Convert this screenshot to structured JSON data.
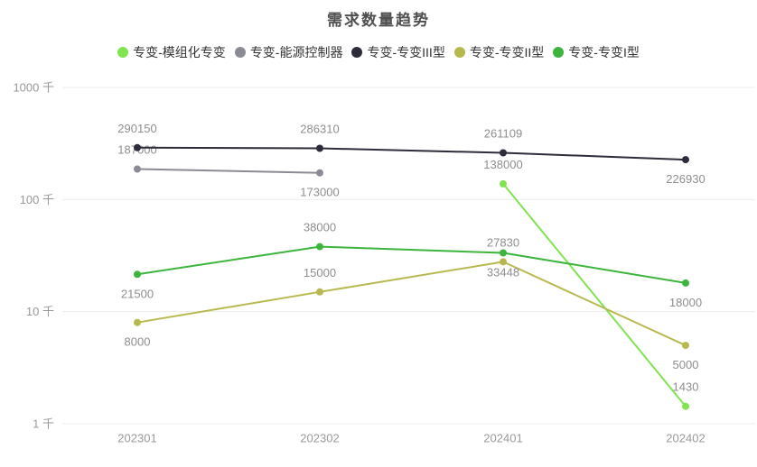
{
  "chart_data": {
    "type": "line",
    "title": "需求数量趋势",
    "categories": [
      "202301",
      "202302",
      "202401",
      "202402"
    ],
    "y_axis": {
      "scale": "log",
      "unit": "千",
      "range": [
        1000,
        1000000
      ],
      "ticks": [
        {
          "label": "1000 千",
          "value": 1000000
        },
        {
          "label": "100 千",
          "value": 100000
        },
        {
          "label": "10 千",
          "value": 10000
        },
        {
          "label": "1 千",
          "value": 1000
        }
      ]
    },
    "legend": {
      "position": "top",
      "items": [
        "专变-模组化专变",
        "专变-能源控制器",
        "专变-专变III型",
        "专变-专变II型",
        "专变-专变I型"
      ]
    },
    "grid": {
      "horizontal_lines": true,
      "vertical_lines": false
    },
    "series": [
      {
        "name": "专变-模组化专变",
        "color": "#80e34f",
        "points": [
          {
            "x": "202401",
            "value": 138000,
            "label": "138000",
            "label_pos": "above"
          },
          {
            "x": "202402",
            "value": 1430,
            "label": "1430",
            "label_pos": "above"
          }
        ]
      },
      {
        "name": "专变-能源控制器",
        "color": "#8b8b95",
        "points": [
          {
            "x": "202301",
            "value": 187000,
            "label": "187000",
            "label_pos": "above"
          },
          {
            "x": "202302",
            "value": 173000,
            "label": "173000",
            "label_pos": "below"
          }
        ]
      },
      {
        "name": "专变-专变III型",
        "color": "#2c2c3a",
        "points": [
          {
            "x": "202301",
            "value": 290150,
            "label": "290150",
            "label_pos": "above"
          },
          {
            "x": "202302",
            "value": 286310,
            "label": "286310",
            "label_pos": "above"
          },
          {
            "x": "202401",
            "value": 261109,
            "label": "261109",
            "label_pos": "above"
          },
          {
            "x": "202402",
            "value": 226930,
            "label": "226930",
            "label_pos": "below"
          }
        ]
      },
      {
        "name": "专变-专变II型",
        "color": "#b7b94f",
        "points": [
          {
            "x": "202301",
            "value": 8000,
            "label": "8000",
            "label_pos": "below"
          },
          {
            "x": "202302",
            "value": 15000,
            "label": "15000",
            "label_pos": "above"
          },
          {
            "x": "202401",
            "value": 27830,
            "label": "27830",
            "label_pos": "above"
          },
          {
            "x": "202402",
            "value": 5000,
            "label": "5000",
            "label_pos": "below"
          }
        ]
      },
      {
        "name": "专变-专变I型",
        "color": "#3db53d",
        "points": [
          {
            "x": "202301",
            "value": 21500,
            "label": "21500",
            "label_pos": "below"
          },
          {
            "x": "202302",
            "value": 38000,
            "label": "38000",
            "label_pos": "above"
          },
          {
            "x": "202401",
            "value": 33448,
            "label": "33448",
            "label_pos": "below"
          },
          {
            "x": "202402",
            "value": 18000,
            "label": "18000",
            "label_pos": "below"
          }
        ]
      }
    ],
    "style": {
      "background": "#ffffff",
      "grid_color": "#ebebeb",
      "data_label_color": "#8e8e8e",
      "axis_label_color": "#999999",
      "title_color": "#4f4f4f",
      "legend_text_color": "#333333"
    }
  }
}
